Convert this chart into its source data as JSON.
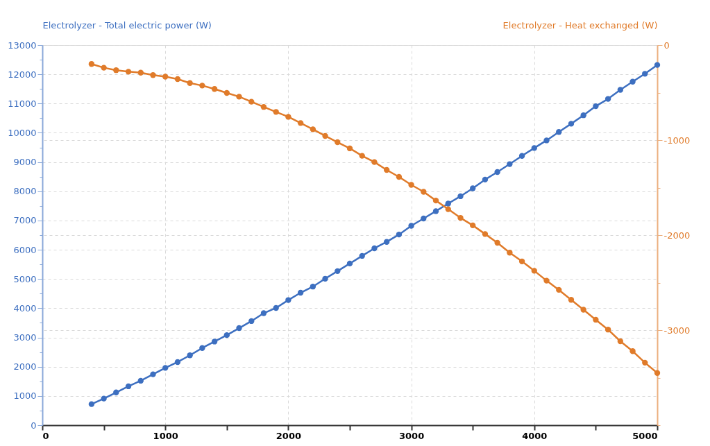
{
  "chart_data": {
    "type": "line",
    "ylabel": "Electrolyzer - Total electric power (W)",
    "y2label": "Electrolyzer - Heat exchanged (W)",
    "x": [
      400,
      500,
      600,
      700,
      800,
      900,
      1000,
      1100,
      1200,
      1300,
      1400,
      1500,
      1600,
      1700,
      1800,
      1900,
      2000,
      2100,
      2200,
      2300,
      2400,
      2500,
      2600,
      2700,
      2800,
      2900,
      3000,
      3100,
      3200,
      3300,
      3400,
      3500,
      3600,
      3700,
      3800,
      3900,
      4000,
      4100,
      4200,
      4300,
      4400,
      4500,
      4600,
      4700,
      4800,
      4900,
      5000
    ],
    "series": [
      {
        "color": "#3d6fc0",
        "values": [
          720,
          910,
          1120,
          1330,
          1520,
          1740,
          1960,
          2160,
          2390,
          2640,
          2860,
          3080,
          3320,
          3560,
          3830,
          4010,
          4280,
          4530,
          4740,
          5010,
          5270,
          5530,
          5790,
          6050,
          6270,
          6520,
          6820,
          7070,
          7320,
          7580,
          7830,
          8100,
          8400,
          8660,
          8930,
          9210,
          9480,
          9740,
          10030,
          10310,
          10600,
          10910,
          11160,
          11470,
          11750,
          12020,
          12320
        ]
      },
      {
        "color": "#e07b2a",
        "axis": "y2",
        "values": [
          -199,
          -238,
          -264,
          -280,
          -290,
          -316,
          -332,
          -358,
          -400,
          -426,
          -462,
          -504,
          -543,
          -596,
          -651,
          -703,
          -755,
          -820,
          -886,
          -956,
          -1022,
          -1087,
          -1165,
          -1231,
          -1314,
          -1387,
          -1471,
          -1544,
          -1636,
          -1727,
          -1818,
          -1897,
          -1988,
          -2080,
          -2184,
          -2276,
          -2375,
          -2479,
          -2576,
          -2681,
          -2785,
          -2890,
          -2994,
          -3117,
          -3221,
          -3342,
          -3451
        ]
      }
    ],
    "xlim": [
      0,
      5000
    ],
    "xticks": [
      0,
      {
        "value": 500,
        "label": null
      },
      1000,
      {
        "value": 1500,
        "label": null
      },
      2000,
      {
        "value": 2500,
        "label": null
      },
      3000,
      {
        "value": 3500,
        "label": null
      },
      4000,
      {
        "value": 4500,
        "label": null
      },
      5000
    ],
    "ylim": [
      0,
      13000
    ],
    "yticks": [
      0,
      {
        "value": 500,
        "label": null
      },
      1000,
      {
        "value": 1500,
        "label": null
      },
      2000,
      {
        "value": 2500,
        "label": null
      },
      3000,
      {
        "value": 3500,
        "label": null
      },
      4000,
      {
        "value": 4500,
        "label": null
      },
      5000,
      {
        "value": 5500,
        "label": null
      },
      6000,
      {
        "value": 6500,
        "label": null
      },
      7000,
      {
        "value": 7500,
        "label": null
      },
      8000,
      {
        "value": 8500,
        "label": null
      },
      9000,
      {
        "value": 9500,
        "label": null
      },
      10000,
      {
        "value": 10500,
        "label": null
      },
      11000,
      {
        "value": 11500,
        "label": null
      },
      12000,
      {
        "value": 12500,
        "label": null
      },
      13000
    ],
    "y2lim": [
      -4000,
      0
    ],
    "y2ticks": [
      0,
      {
        "value": -500,
        "label": null
      },
      -1000,
      {
        "value": -1500,
        "label": null
      },
      -2000,
      {
        "value": -2500,
        "label": null
      },
      -3000,
      {
        "value": -3500,
        "label": null
      },
      {
        "value": -4000,
        "label": null
      }
    ],
    "grid": true,
    "marker": "circle",
    "line_style": "solid"
  }
}
